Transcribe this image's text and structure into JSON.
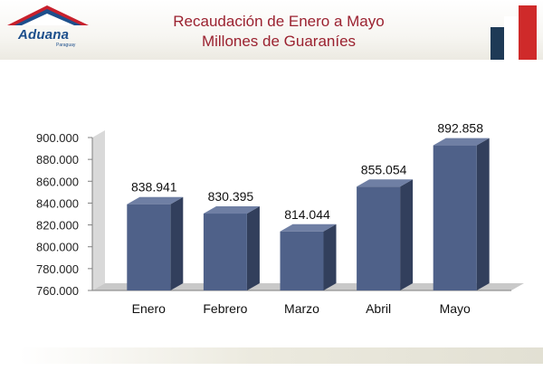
{
  "header": {
    "logo_name": "Aduana",
    "logo_sub": "Paraguay",
    "title_line1": "Recaudación de Enero a Mayo",
    "title_line2": "Millones de Guaraníes"
  },
  "colors": {
    "bar_front": "#4f6189",
    "bar_side": "#323f5c",
    "bar_top": "#6f7fa4",
    "title": "#9b2230",
    "logo": "#1d4f8c"
  },
  "chart_data": {
    "type": "bar",
    "title": "Recaudación de Enero a Mayo — Millones de Guaraníes",
    "categories": [
      "Enero",
      "Febrero",
      "Marzo",
      "Abril",
      "Mayo"
    ],
    "values": [
      838941,
      830395,
      814044,
      855054,
      892858
    ],
    "value_labels": [
      "838.941",
      "830.395",
      "814.044",
      "855.054",
      "892.858"
    ],
    "ylim": [
      760000,
      900000
    ],
    "yticks": [
      760000,
      780000,
      800000,
      820000,
      840000,
      860000,
      880000,
      900000
    ],
    "ytick_labels": [
      "760.000",
      "780.000",
      "800.000",
      "820.000",
      "840.000",
      "860.000",
      "880.000",
      "900.000"
    ],
    "xlabel": "",
    "ylabel": "",
    "legend": "none",
    "grid": false,
    "style": "3d-columns"
  }
}
